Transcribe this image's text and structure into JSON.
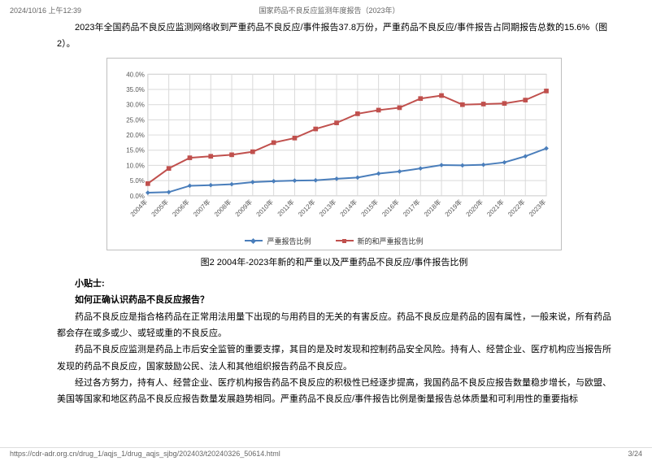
{
  "header": {
    "timestamp": "2024/10/16 上午12:39",
    "doc_title": "国家药品不良反应监测年度报告（2023年）"
  },
  "intro": "2023年全国药品不良反应监测网络收到严重药品不良反应/事件报告37.8万份，严重药品不良反应/事件报告占同期报告总数的15.6%（图2）。",
  "chart": {
    "type": "line",
    "years": [
      "2004年",
      "2005年",
      "2006年",
      "2007年",
      "2008年",
      "2009年",
      "2010年",
      "2011年",
      "2012年",
      "2013年",
      "2014年",
      "2015年",
      "2016年",
      "2017年",
      "2018年",
      "2019年",
      "2020年",
      "2021年",
      "2022年",
      "2023年"
    ],
    "series1": {
      "name": "严重报告比例",
      "color": "#4a7ebb",
      "marker": "diamond",
      "values": [
        1.0,
        1.2,
        3.3,
        3.5,
        3.8,
        4.5,
        4.8,
        5.0,
        5.1,
        5.6,
        6.0,
        7.3,
        8.0,
        9.0,
        10.1,
        10.0,
        10.2,
        11.0,
        13.0,
        15.6
      ]
    },
    "series2": {
      "name": "新的和严重报告比例",
      "color": "#c0504d",
      "marker": "square",
      "values": [
        4.0,
        9.0,
        12.5,
        13.0,
        13.5,
        14.5,
        17.5,
        19.0,
        22.0,
        24.0,
        27.0,
        28.2,
        29.0,
        32.0,
        33.0,
        30.0,
        30.2,
        30.4,
        31.5,
        34.5
      ]
    },
    "ylim": [
      0,
      40
    ],
    "ytick_step": 5,
    "ytick_format_pct": true,
    "grid_color": "#d9d9d9",
    "border_color": "#bfbfbf",
    "background_color": "#ffffff",
    "title_fontsize": 11,
    "tick_fontsize": 8,
    "line_width": 2,
    "marker_size": 4
  },
  "caption": "图2  2004年-2023年新的和严重以及严重药品不良反应/事件报告比例",
  "tips": {
    "title": "小贴士:",
    "question": "如何正确认识药品不良反应报告？",
    "p1": "药品不良反应是指合格药品在正常用法用量下出现的与用药目的无关的有害反应。药品不良反应是药品的固有属性，一般来说，所有药品都会存在或多或少、或轻或重的不良反应。",
    "p2": "药品不良反应监测是药品上市后安全监管的重要支撑，其目的是及时发现和控制药品安全风险。持有人、经营企业、医疗机构应当报告所发现的药品不良反应，国家鼓励公民、法人和其他组织报告药品不良反应。",
    "p3": "经过各方努力，持有人、经营企业、医疗机构报告药品不良反应的积极性已经逐步提高，我国药品不良反应报告数量稳步增长，与欧盟、美国等国家和地区药品不良反应报告数量发展趋势相同。严重药品不良反应/事件报告比例是衡量报告总体质量和可利用性的重要指标"
  },
  "footer": {
    "url": "https://cdr-adr.org.cn/drug_1/aqjs_1/drug_aqjs_sjbg/202403/t20240326_50614.html",
    "page": "3/24"
  }
}
